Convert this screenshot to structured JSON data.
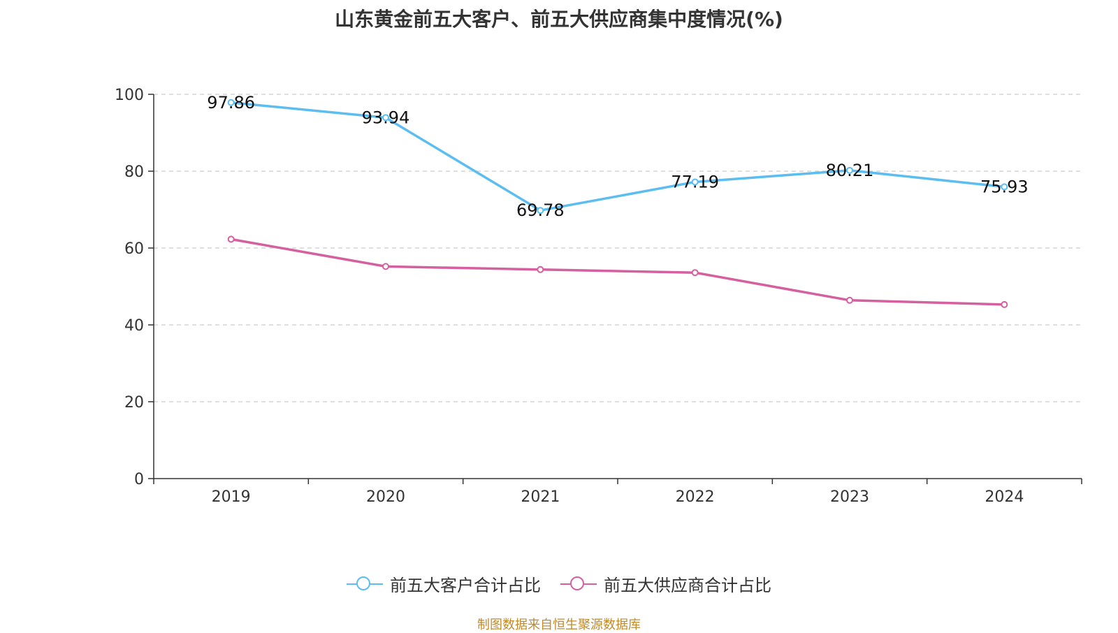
{
  "chart_data": {
    "type": "line",
    "title": "山东黄金前五大客户、前五大供应商集中度情况(%)",
    "categories": [
      "2019",
      "2020",
      "2021",
      "2022",
      "2023",
      "2024"
    ],
    "series": [
      {
        "name": "前五大客户合计占比",
        "color": "#5bbdf0",
        "values": [
          97.86,
          93.94,
          69.78,
          77.19,
          80.21,
          75.93
        ],
        "labels_shown": true
      },
      {
        "name": "前五大供应商合计占比",
        "color": "#d4609f",
        "values": [
          62.3,
          55.2,
          54.4,
          53.6,
          46.4,
          45.3
        ],
        "labels_shown": false
      }
    ],
    "ylim": [
      0,
      100
    ],
    "yticks": [
      "0",
      "20",
      "40",
      "60",
      "80",
      "100"
    ],
    "grid": true,
    "legend": "bottom-center"
  },
  "footer": {
    "source": "制图数据来自恒生聚源数据库"
  }
}
